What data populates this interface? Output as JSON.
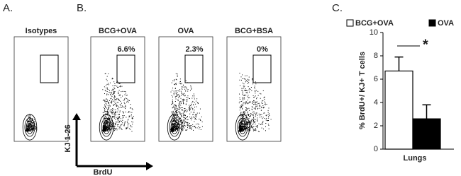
{
  "figure": {
    "panel_labels": [
      "A.",
      "B."
    ],
    "flow_plots": [
      {
        "title": "Isotypes"
      },
      {
        "title": "BCG+OVA",
        "gate_percent": "6.6%"
      },
      {
        "title": "OVA",
        "gate_percent": "2.3%"
      },
      {
        "title": "BCG+BSA",
        "gate_percent": "0%"
      }
    ],
    "y_axis_label": "KJ 1-26",
    "x_axis_label": "BrdU"
  },
  "chart_data": {
    "type": "bar",
    "panel_label": "C.",
    "ylabel": "% BrdU+/ KJ+ T cells",
    "categories": [
      "Lungs"
    ],
    "series": [
      {
        "name": "BCG+OVA",
        "color": "#ffffff",
        "values": [
          6.7
        ],
        "errors": [
          1.2
        ]
      },
      {
        "name": "OVA",
        "color": "#000000",
        "values": [
          2.6
        ],
        "errors": [
          1.2
        ]
      }
    ],
    "ylim": [
      0,
      10
    ],
    "yticks": [
      0,
      2,
      4,
      6,
      8,
      10
    ],
    "annotation": "*"
  }
}
